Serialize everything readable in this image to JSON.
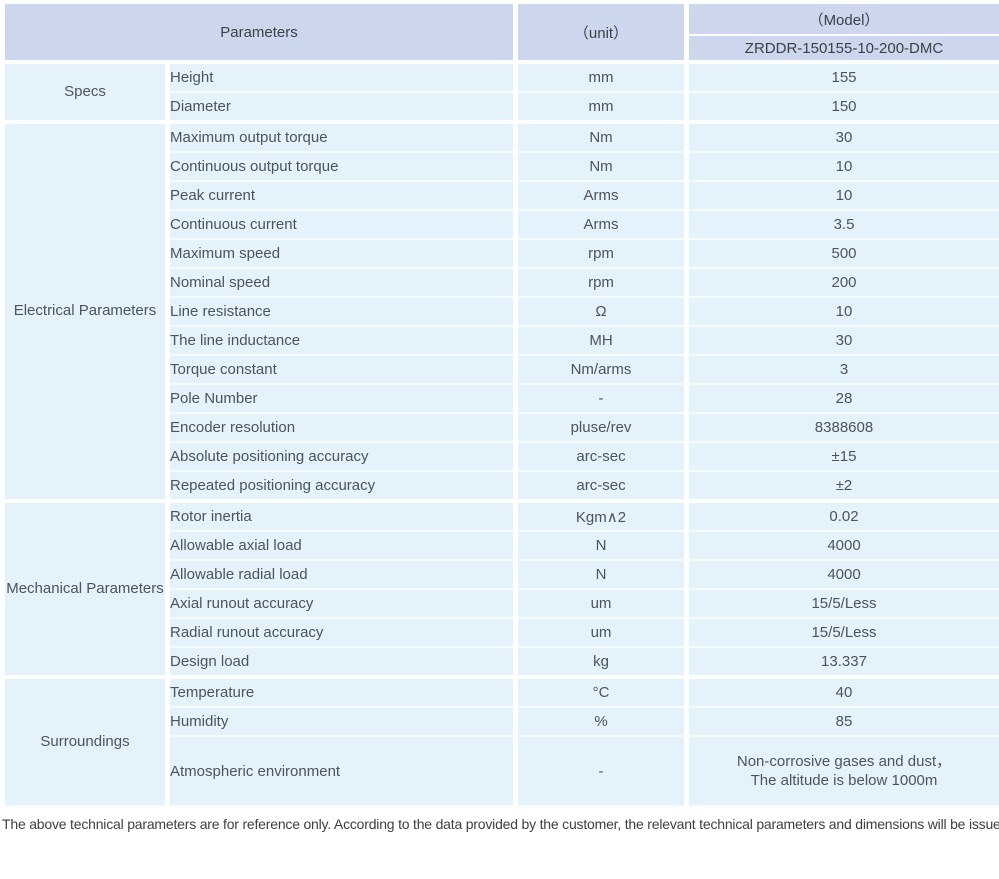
{
  "colors": {
    "header_bg": "#ccd6ec",
    "cell_bg": "#e3f2fb",
    "divider": "#ffffff",
    "header_text": "#3c4149",
    "body_text": "#4e545b"
  },
  "table": {
    "header": {
      "parameters": "Parameters",
      "unit": "（unit）",
      "model": "（Model）",
      "model_code": "ZRDDR-150155-10-200-DMC"
    },
    "sections": [
      {
        "group": "Specs",
        "rows": [
          {
            "param": "Height",
            "unit": "mm",
            "value": "155"
          },
          {
            "param": "Diameter",
            "unit": "mm",
            "value": "150"
          }
        ]
      },
      {
        "group": "Electrical Parameters",
        "rows": [
          {
            "param": "Maximum output torque",
            "unit": "Nm",
            "value": "30"
          },
          {
            "param": "Continuous output torque",
            "unit": "Nm",
            "value": "10"
          },
          {
            "param": "Peak current",
            "unit": "Arms",
            "value": "10"
          },
          {
            "param": "Continuous current",
            "unit": "Arms",
            "value": "3.5"
          },
          {
            "param": "Maximum speed",
            "unit": "rpm",
            "value": "500"
          },
          {
            "param": "Nominal speed",
            "unit": "rpm",
            "value": "200"
          },
          {
            "param": "Line resistance",
            "unit": "Ω",
            "value": "10"
          },
          {
            "param": "The line inductance",
            "unit": "MH",
            "value": "30"
          },
          {
            "param": "Torque constant",
            "unit": "Nm/arms",
            "value": "3"
          },
          {
            "param": "Pole Number",
            "unit": "-",
            "value": "28"
          },
          {
            "param": "Encoder resolution",
            "unit": "pluse/rev",
            "value": "8388608"
          },
          {
            "param": "Absolute positioning accuracy",
            "unit": "arc-sec",
            "value": "±15"
          },
          {
            "param": "Repeated positioning accuracy",
            "unit": "arc-sec",
            "value": "±2"
          }
        ]
      },
      {
        "group": "Mechanical Parameters",
        "rows": [
          {
            "param": "Rotor inertia",
            "unit": "Kgm∧2",
            "value": "0.02"
          },
          {
            "param": "Allowable axial load",
            "unit": "N",
            "value": "4000"
          },
          {
            "param": "Allowable radial load",
            "unit": "N",
            "value": "4000"
          },
          {
            "param": "Axial runout accuracy",
            "unit": "um",
            "value": "15/5/Less"
          },
          {
            "param": "Radial runout accuracy",
            "unit": "um",
            "value": "15/5/Less"
          },
          {
            "param": "Design load",
            "unit": "kg",
            "value": "13.337"
          }
        ]
      },
      {
        "group": "Surroundings",
        "rows": [
          {
            "param": "Temperature",
            "unit": "°C",
            "value": "40"
          },
          {
            "param": "Humidity",
            "unit": "%",
            "value": "85"
          },
          {
            "param": "Atmospheric environment",
            "unit": "-",
            "value": "Non-corrosive gases and dust，\nThe altitude is below 1000m"
          }
        ]
      }
    ],
    "footnote": "The above technical parameters are for reference only. According to the data provided by the customer, the relevant technical parameters and dimensions will be issued."
  }
}
